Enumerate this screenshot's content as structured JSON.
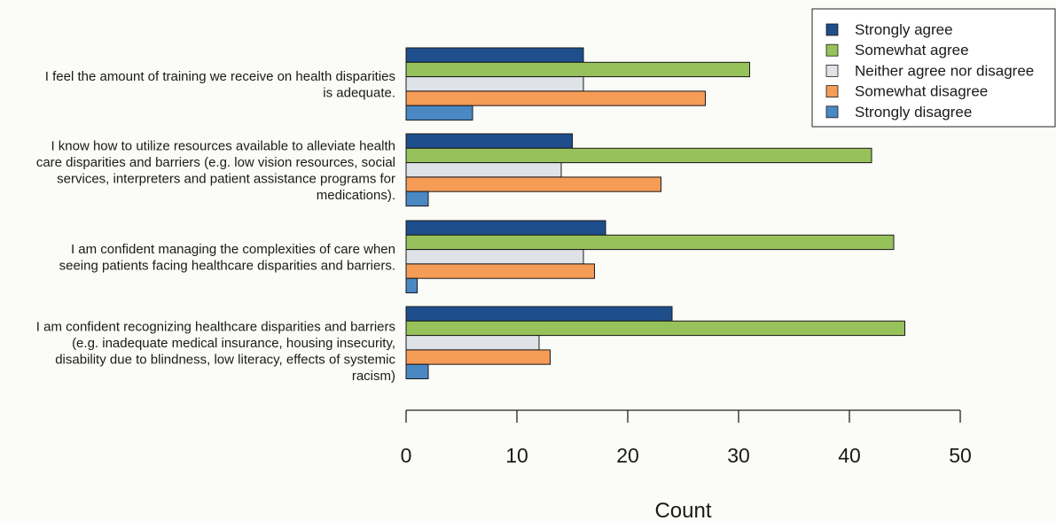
{
  "chart_data": {
    "type": "bar",
    "orientation": "horizontal",
    "categories": [
      [
        "I feel the amount of training we receive on health disparities",
        "is adequate."
      ],
      [
        "I know how to utilize resources available to alleviate health",
        "care disparities and barriers (e.g. low vision resources, social",
        "services, interpreters and patient assistance programs for",
        "medications)."
      ],
      [
        "I am confident managing the complexities of care when",
        "seeing patients facing healthcare disparities and barriers."
      ],
      [
        "I am confident recognizing healthcare disparities and barriers",
        "(e.g. inadequate medical insurance, housing insecurity,",
        "disability due to blindness, low literacy, effects of systemic",
        "racism)"
      ]
    ],
    "series": [
      {
        "name": "Strongly agree",
        "color": "#1f4e8c",
        "values": [
          16,
          15,
          18,
          24
        ]
      },
      {
        "name": "Somewhat agree",
        "color": "#97c15a",
        "values": [
          31,
          42,
          44,
          45
        ]
      },
      {
        "name": "Neither agree nor disagree",
        "color": "#dfe2e6",
        "values": [
          16,
          14,
          16,
          12
        ]
      },
      {
        "name": "Somewhat disagree",
        "color": "#f59c56",
        "values": [
          27,
          23,
          17,
          13
        ]
      },
      {
        "name": "Strongly disagree",
        "color": "#4a88c4",
        "values": [
          6,
          2,
          1,
          2
        ]
      }
    ],
    "xlabel": "Count",
    "xlim": [
      0,
      50
    ],
    "xticks": [
      0,
      10,
      20,
      30,
      40,
      50
    ],
    "legend_position": "top-right",
    "grid": false
  }
}
